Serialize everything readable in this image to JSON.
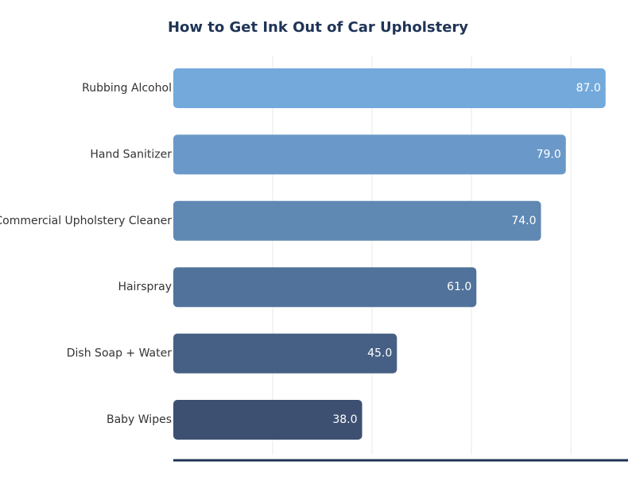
{
  "chart_data": {
    "type": "bar",
    "orientation": "horizontal",
    "title": "How to Get Ink Out of Car Upholstery",
    "xlabel": "",
    "ylabel": "",
    "categories": [
      "Rubbing Alcohol",
      "Hand Sanitizer",
      "Commercial Upholstery Cleaner",
      "Hairspray",
      "Dish Soap + Water",
      "Baby Wipes"
    ],
    "values": [
      87.0,
      79.0,
      74.0,
      61.0,
      45.0,
      38.0
    ],
    "data_labels": [
      "87.0",
      "79.0",
      "74.0",
      "61.0",
      "45.0",
      "38.0"
    ],
    "xlim": [
      0,
      92
    ],
    "grid": "vertical",
    "legend": "none",
    "colors": [
      "#74a9db",
      "#6a99c9",
      "#5f88b3",
      "#51739b",
      "#465f84",
      "#3d5072"
    ],
    "title_color": "#1f3456",
    "axis_color": "#1f3456"
  }
}
